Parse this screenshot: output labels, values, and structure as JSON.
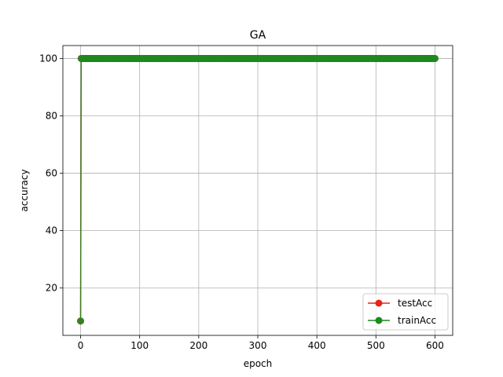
{
  "chart_data": {
    "type": "line",
    "title": "GA",
    "xlabel": "epoch",
    "ylabel": "accuracy",
    "xlim": [
      -30,
      630
    ],
    "ylim": [
      3.5,
      104.5
    ],
    "xticks": [
      0,
      100,
      200,
      300,
      400,
      500,
      600
    ],
    "yticks": [
      20,
      40,
      60,
      80,
      100
    ],
    "grid": true,
    "legend_position": "lower right",
    "series": [
      {
        "name": "testAcc",
        "color": "#e8231c",
        "marker": "circle",
        "points": [
          [
            0,
            8.5
          ],
          [
            1,
            100
          ],
          [
            600,
            100
          ]
        ],
        "note": "value is 100 at every epoch from 1 to 600"
      },
      {
        "name": "trainAcc",
        "color": "#1e8a1e",
        "marker": "circle",
        "points": [
          [
            0,
            8.5
          ],
          [
            1,
            100
          ],
          [
            600,
            100
          ]
        ],
        "note": "value is 100 at every epoch from 1 to 600"
      }
    ]
  }
}
